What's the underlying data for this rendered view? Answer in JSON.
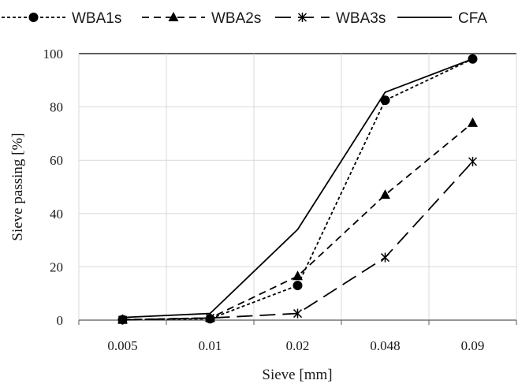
{
  "chart_data": {
    "type": "line",
    "categories": [
      "0.005",
      "0.01",
      "0.02",
      "0.048",
      "0.09"
    ],
    "xlabel": "Sieve [mm]",
    "ylabel": "Sieve passing [%]",
    "ylim": [
      0,
      100
    ],
    "yticks": [
      0,
      20,
      40,
      60,
      80,
      100
    ],
    "grid": "vertical and horizontal",
    "legend_position": "top",
    "series": [
      {
        "name": "WBA1s",
        "marker": "circle",
        "dash": "short-dash",
        "color": "#000000",
        "values": [
          0.2,
          0.5,
          13,
          82.5,
          98
        ]
      },
      {
        "name": "WBA2s",
        "marker": "triangle",
        "dash": "dash",
        "color": "#000000",
        "values": [
          0.2,
          0.8,
          16.5,
          47,
          74
        ]
      },
      {
        "name": "WBA3s",
        "marker": "asterisk",
        "dash": "long-dash",
        "color": "#000000",
        "values": [
          0.1,
          0.8,
          2.5,
          23.5,
          59.5
        ]
      },
      {
        "name": "CFA",
        "marker": "none",
        "dash": "solid",
        "color": "#000000",
        "values": [
          1,
          2.5,
          34,
          85.5,
          98
        ]
      }
    ]
  }
}
